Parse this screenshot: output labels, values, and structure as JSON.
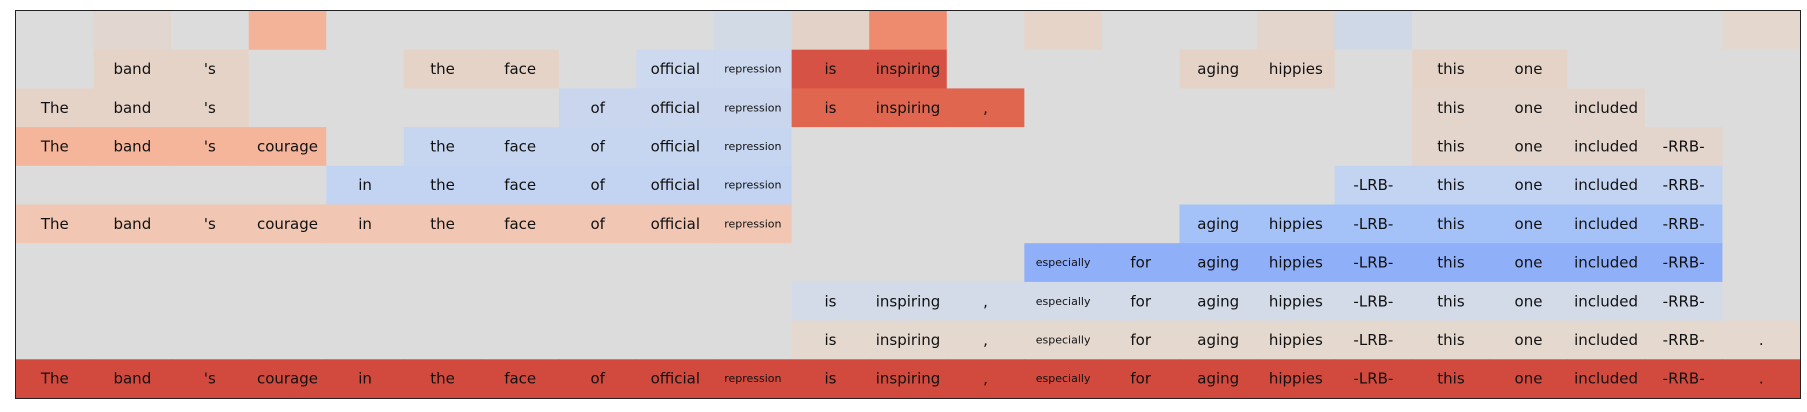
{
  "chart_data": {
    "type": "heatmap",
    "title": "",
    "tokens": [
      "The",
      "band",
      "'s",
      "courage",
      "in",
      "the",
      "face",
      "of",
      "official",
      "repression",
      "is",
      "inspiring",
      ",",
      "especially",
      "for",
      "aging",
      "hippies",
      "-LRB-",
      "this",
      "one",
      "included",
      "-RRB-",
      "."
    ],
    "rows": [
      {
        "cells": [
          0,
          0,
          0,
          0,
          0,
          0,
          0,
          0,
          0,
          0,
          0,
          0,
          0,
          0,
          0,
          0,
          0,
          0,
          0,
          0,
          0,
          0,
          0
        ],
        "fill": [
          "#dcdcdc",
          "#e2d6d0",
          "#dcdcdc",
          "#f3b398",
          "#dcdcdc",
          "#dcdcdc",
          "#dcdcdc",
          "#dcdcdc",
          "#dcdcdc",
          "#d2dae6",
          "#e3d2c8",
          "#ee8a6e",
          "#dcdcdc",
          "#e6d4c9",
          "#dcdcdc",
          "#dcdcdc",
          "#e3d5cc",
          "#cfd8e6",
          "#dcdcdc",
          "#dcdcdc",
          "#dcdcdc",
          "#dcdcdc",
          "#e3d7ce"
        ]
      },
      {
        "cells": [
          0,
          1,
          1,
          0,
          0,
          1,
          1,
          0,
          1,
          1,
          1,
          1,
          0,
          0,
          0,
          1,
          1,
          0,
          1,
          1,
          0,
          0,
          0
        ],
        "fill": [
          "#dcdcdc",
          "#e5d3c8",
          "#e5d3c8",
          "#dcdcdc",
          "#dcdcdc",
          "#e5d3c8",
          "#e5d3c8",
          "#dcdcdc",
          "#cdd9ef",
          "#cdd9ef",
          "#d65244",
          "#d65244",
          "#dcdcdc",
          "#dcdcdc",
          "#dcdcdc",
          "#e5d3c8",
          "#e5d3c8",
          "#dcdcdc",
          "#e5d3c8",
          "#e5d3c8",
          "#dcdcdc",
          "#dcdcdc",
          "#dcdcdc"
        ]
      },
      {
        "cells": [
          1,
          1,
          1,
          0,
          0,
          0,
          0,
          1,
          1,
          1,
          1,
          1,
          1,
          0,
          0,
          0,
          0,
          0,
          1,
          1,
          1,
          0,
          0
        ],
        "fill": [
          "#e5d3c8",
          "#e5d3c8",
          "#e5d3c8",
          "#dcdcdc",
          "#dcdcdc",
          "#dcdcdc",
          "#dcdcdc",
          "#c9d6ee",
          "#c9d6ee",
          "#c9d6ee",
          "#e06650",
          "#e06650",
          "#e06650",
          "#dcdcdc",
          "#dcdcdc",
          "#dcdcdc",
          "#dcdcdc",
          "#dcdcdc",
          "#e3d5cb",
          "#e3d5cb",
          "#e3d5cb",
          "#dcdcdc",
          "#dcdcdc"
        ]
      },
      {
        "cells": [
          1,
          1,
          1,
          1,
          0,
          1,
          1,
          1,
          1,
          1,
          0,
          0,
          0,
          0,
          0,
          0,
          0,
          0,
          1,
          1,
          1,
          1,
          0
        ],
        "fill": [
          "#f4b59b",
          "#f4b59b",
          "#f4b59b",
          "#f4b59b",
          "#dcdcdc",
          "#c7d6f0",
          "#c7d6f0",
          "#c7d6f0",
          "#c7d6f0",
          "#c7d6f0",
          "#dcdcdc",
          "#dcdcdc",
          "#dcdcdc",
          "#dcdcdc",
          "#dcdcdc",
          "#dcdcdc",
          "#dcdcdc",
          "#dcdcdc",
          "#e3d5cc",
          "#e3d5cc",
          "#e3d5cc",
          "#e3d5cc",
          "#dcdcdc"
        ]
      },
      {
        "cells": [
          0,
          0,
          0,
          0,
          1,
          1,
          1,
          1,
          1,
          1,
          0,
          0,
          0,
          0,
          0,
          0,
          0,
          1,
          1,
          1,
          1,
          1,
          0
        ],
        "fill": [
          "#dcdcdc",
          "#dcdcdc",
          "#dcdcdc",
          "#dcdcdc",
          "#c3d4f2",
          "#c3d4f2",
          "#c3d4f2",
          "#c3d4f2",
          "#c3d4f2",
          "#c3d4f2",
          "#dcdcdc",
          "#dcdcdc",
          "#dcdcdc",
          "#dcdcdc",
          "#dcdcdc",
          "#dcdcdc",
          "#dcdcdc",
          "#c3d4f2",
          "#c3d4f2",
          "#c3d4f2",
          "#c3d4f2",
          "#c3d4f2",
          "#dcdcdc"
        ]
      },
      {
        "cells": [
          1,
          1,
          1,
          1,
          1,
          1,
          1,
          1,
          1,
          1,
          0,
          0,
          0,
          0,
          0,
          1,
          1,
          1,
          1,
          1,
          1,
          1,
          0
        ],
        "fill": [
          "#f1c6b2",
          "#f1c6b2",
          "#f1c6b2",
          "#f1c6b2",
          "#f1c6b2",
          "#f1c6b2",
          "#f1c6b2",
          "#f1c6b2",
          "#f1c6b2",
          "#f1c6b2",
          "#dcdcdc",
          "#dcdcdc",
          "#dcdcdc",
          "#dcdcdc",
          "#dcdcdc",
          "#a5c2f8",
          "#a5c2f8",
          "#a5c2f8",
          "#a5c2f8",
          "#a5c2f8",
          "#a5c2f8",
          "#a5c2f8",
          "#dcdcdc"
        ]
      },
      {
        "cells": [
          0,
          0,
          0,
          0,
          0,
          0,
          0,
          0,
          0,
          0,
          0,
          0,
          0,
          1,
          1,
          1,
          1,
          1,
          1,
          1,
          1,
          1,
          0
        ],
        "fill": [
          "#dcdcdc",
          "#dcdcdc",
          "#dcdcdc",
          "#dcdcdc",
          "#dcdcdc",
          "#dcdcdc",
          "#dcdcdc",
          "#dcdcdc",
          "#dcdcdc",
          "#dcdcdc",
          "#dcdcdc",
          "#dcdcdc",
          "#dcdcdc",
          "#90aff9",
          "#90aff9",
          "#90aff9",
          "#90aff9",
          "#90aff9",
          "#90aff9",
          "#90aff9",
          "#90aff9",
          "#90aff9",
          "#dcdcdc"
        ]
      },
      {
        "cells": [
          0,
          0,
          0,
          0,
          0,
          0,
          0,
          0,
          0,
          0,
          1,
          1,
          1,
          1,
          1,
          1,
          1,
          1,
          1,
          1,
          1,
          1,
          0
        ],
        "fill": [
          "#dcdcdc",
          "#dcdcdc",
          "#dcdcdc",
          "#dcdcdc",
          "#dcdcdc",
          "#dcdcdc",
          "#dcdcdc",
          "#dcdcdc",
          "#dcdcdc",
          "#dcdcdc",
          "#d3dbe8",
          "#d3dbe8",
          "#d3dbe8",
          "#d3dbe8",
          "#d3dbe8",
          "#d3dbe8",
          "#d3dbe8",
          "#d3dbe8",
          "#d3dbe8",
          "#d3dbe8",
          "#d3dbe8",
          "#d3dbe8",
          "#dcdcdc"
        ]
      },
      {
        "cells": [
          0,
          0,
          0,
          0,
          0,
          0,
          0,
          0,
          0,
          0,
          1,
          1,
          1,
          1,
          1,
          1,
          1,
          1,
          1,
          1,
          1,
          1,
          1
        ],
        "fill": [
          "#dcdcdc",
          "#dcdcdc",
          "#dcdcdc",
          "#dcdcdc",
          "#dcdcdc",
          "#dcdcdc",
          "#dcdcdc",
          "#dcdcdc",
          "#dcdcdc",
          "#dcdcdc",
          "#e5d8cf",
          "#e5d8cf",
          "#e5d8cf",
          "#e5d8cf",
          "#e5d8cf",
          "#e5d8cf",
          "#e5d8cf",
          "#e5d8cf",
          "#e5d8cf",
          "#e5d8cf",
          "#e5d8cf",
          "#e5d8cf",
          "#e5d8cf"
        ]
      },
      {
        "cells": [
          1,
          1,
          1,
          1,
          1,
          1,
          1,
          1,
          1,
          1,
          1,
          1,
          1,
          1,
          1,
          1,
          1,
          1,
          1,
          1,
          1,
          1,
          1
        ],
        "fill": [
          "#d24a3e",
          "#d24a3e",
          "#d24a3e",
          "#d24a3e",
          "#d24a3e",
          "#d24a3e",
          "#d24a3e",
          "#d24a3e",
          "#d24a3e",
          "#d24a3e",
          "#d24a3e",
          "#d24a3e",
          "#d24a3e",
          "#d24a3e",
          "#d24a3e",
          "#d24a3e",
          "#d24a3e",
          "#d24a3e",
          "#d24a3e",
          "#d24a3e",
          "#d24a3e",
          "#d24a3e",
          "#d24a3e"
        ]
      }
    ],
    "small_tokens": [
      "repression",
      "especially"
    ],
    "background_color": "#dcdcdc",
    "grid": false,
    "legend": "none"
  }
}
